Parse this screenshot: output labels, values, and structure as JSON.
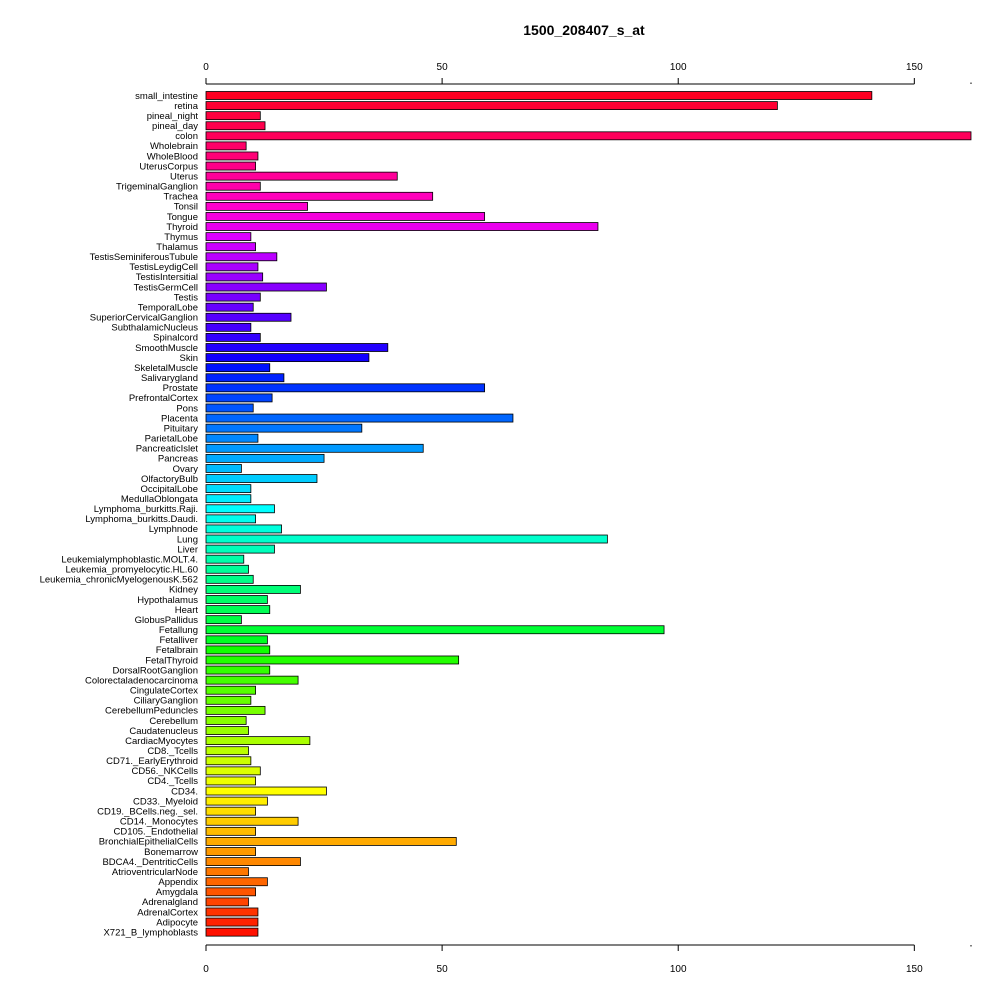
{
  "chart_data": {
    "type": "bar",
    "orientation": "horizontal",
    "title": "1500_208407_s_at",
    "xlabel": "",
    "ylabel": "",
    "xlim": [
      0,
      162
    ],
    "x_ticks": [
      0,
      50,
      100,
      150
    ],
    "axes": [
      "top",
      "bottom"
    ],
    "grid": false,
    "legend": "none",
    "categories": [
      "small_intestine",
      "retina",
      "pineal_night",
      "pineal_day",
      "colon",
      "Wholebrain",
      "WholeBlood",
      "UterusCorpus",
      "Uterus",
      "TrigeminalGanglion",
      "Trachea",
      "Tonsil",
      "Tongue",
      "Thyroid",
      "Thymus",
      "Thalamus",
      "TestisSeminiferousTubule",
      "TestisLeydigCell",
      "TestisIntersitial",
      "TestisGermCell",
      "Testis",
      "TemporalLobe",
      "SuperiorCervicalGanglion",
      "SubthalamicNucleus",
      "Spinalcord",
      "SmoothMuscle",
      "Skin",
      "SkeletalMuscle",
      "Salivarygland",
      "Prostate",
      "PrefrontalCortex",
      "Pons",
      "Placenta",
      "Pituitary",
      "ParietalLobe",
      "PancreaticIslet",
      "Pancreas",
      "Ovary",
      "OlfactoryBulb",
      "OccipitalLobe",
      "MedullaOblongata",
      "Lymphoma_burkitts.Raji.",
      "Lymphoma_burkitts.Daudi.",
      "Lymphnode",
      "Lung",
      "Liver",
      "Leukemialymphoblastic.MOLT.4.",
      "Leukemia_promyelocytic.HL.60",
      "Leukemia_chronicMyelogenousK.562",
      "Kidney",
      "Hypothalamus",
      "Heart",
      "GlobusPallidus",
      "Fetallung",
      "Fetalliver",
      "Fetalbrain",
      "FetalThyroid",
      "DorsalRootGanglion",
      "Colorectaladenocarcinoma",
      "CingulateCortex",
      "CiliaryGanglion",
      "CerebellumPeduncles",
      "Cerebellum",
      "Caudatenucleus",
      "CardiacMyocytes",
      "CD8._Tcells",
      "CD71._EarlyErythroid",
      "CD56._NKCells",
      "CD4._Tcells",
      "CD34.",
      "CD33._Myeloid",
      "CD19._BCells.neg._sel.",
      "CD14._Monocytes",
      "CD105._Endothelial",
      "BronchialEpithelialCells",
      "Bonemarrow",
      "BDCA4._DentriticCells",
      "AtrioventricularNode",
      "Appendix",
      "Amygdala",
      "Adrenalgland",
      "AdrenalCortex",
      "Adipocyte",
      "X721_B_lymphoblasts"
    ],
    "values": [
      141,
      121,
      11.5,
      12.5,
      162,
      8.5,
      11,
      10.5,
      40.5,
      11.5,
      48,
      21.5,
      59,
      83,
      9.5,
      10.5,
      15,
      11,
      12,
      25.5,
      11.5,
      10,
      18,
      9.5,
      11.5,
      38.5,
      34.5,
      13.5,
      16.5,
      59,
      14,
      10,
      65,
      33,
      11,
      46,
      25,
      7.5,
      23.5,
      9.5,
      9.5,
      14.5,
      10.5,
      16,
      85,
      14.5,
      8,
      9,
      10,
      20,
      13,
      13.5,
      7.5,
      97,
      13,
      13.5,
      53.5,
      13.5,
      19.5,
      10.5,
      9.5,
      12.5,
      8.5,
      9,
      22,
      9,
      9.5,
      11.5,
      10.5,
      25.5,
      13,
      10.5,
      19.5,
      10.5,
      53,
      10.5,
      20,
      9,
      13,
      10.5,
      9,
      11,
      11,
      11
    ],
    "colors": [
      "#ff0022",
      "#ff0033",
      "#ff0040",
      "#ff004d",
      "#ff005a",
      "#ff0068",
      "#ff0077",
      "#ff0088",
      "#ff0099",
      "#ff00aa",
      "#ff00bb",
      "#ff00cc",
      "#f500dd",
      "#ea00ee",
      "#dd00ff",
      "#cc00ff",
      "#bb00ff",
      "#aa00ff",
      "#9900ff",
      "#8800ff",
      "#7700ff",
      "#6600ff",
      "#5500ff",
      "#4400ff",
      "#3300ff",
      "#2200ff",
      "#1100ff",
      "#0011ff",
      "#0022ff",
      "#0033ff",
      "#0044ff",
      "#0055ff",
      "#0066ff",
      "#0077ff",
      "#0088ff",
      "#0099ff",
      "#00aaff",
      "#00bbff",
      "#00ccff",
      "#00ddff",
      "#00eeff",
      "#00ffff",
      "#00ffee",
      "#00ffdd",
      "#00ffcc",
      "#00ffbb",
      "#00ffaa",
      "#00ff99",
      "#00ff88",
      "#00ff77",
      "#00ff66",
      "#00ff55",
      "#00ff44",
      "#00ff33",
      "#00ff22",
      "#11ff00",
      "#22ff00",
      "#33ff00",
      "#44ff00",
      "#55ff00",
      "#66ff00",
      "#77ff00",
      "#88ff00",
      "#99ff00",
      "#aaff00",
      "#bbff00",
      "#ccff00",
      "#ddff00",
      "#eeff00",
      "#ffff00",
      "#ffee00",
      "#ffdd00",
      "#ffcc00",
      "#ffbb00",
      "#ffaa00",
      "#ff9900",
      "#ff8800",
      "#ff7700",
      "#ff6600",
      "#ff5500",
      "#ff4400",
      "#ff3300",
      "#ff2200",
      "#ff1100"
    ]
  }
}
